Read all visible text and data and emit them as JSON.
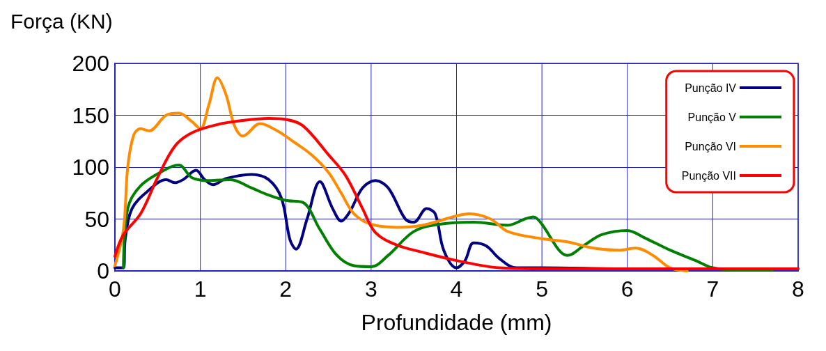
{
  "chart_data": {
    "type": "line",
    "ylabel": "Força (KN)",
    "xlabel": "Profundidade (mm)",
    "xlim": [
      0,
      8
    ],
    "xticks": [
      0,
      1,
      2,
      3,
      4,
      5,
      6,
      7,
      8
    ],
    "ylim": [
      0,
      200
    ],
    "yticks": [
      0,
      50,
      100,
      150,
      200
    ],
    "grid": true,
    "legend": "top right",
    "series": [
      {
        "name": "Punção IV",
        "color": "#000080",
        "x": [
          0,
          0.1,
          0.12,
          0.2,
          0.4,
          0.6,
          0.7,
          0.8,
          0.95,
          1.05,
          1.15,
          1.3,
          1.6,
          1.8,
          1.95,
          2.05,
          2.12,
          2.25,
          2.4,
          2.55,
          2.65,
          2.75,
          2.9,
          3.05,
          3.2,
          3.4,
          3.5,
          3.65,
          3.75,
          3.85,
          4.0,
          4.1,
          4.2,
          4.35,
          4.5,
          4.7,
          5,
          6,
          7,
          8
        ],
        "values": [
          3,
          3,
          30,
          60,
          78,
          88,
          85,
          88,
          97,
          88,
          83,
          89,
          93,
          88,
          70,
          30,
          21,
          50,
          86,
          60,
          48,
          57,
          80,
          87,
          80,
          50,
          47,
          60,
          55,
          20,
          3,
          10,
          27,
          24,
          12,
          3,
          3,
          2,
          2,
          2
        ]
      },
      {
        "name": "Punção V",
        "color": "#008000",
        "x": [
          0.1,
          0.15,
          0.3,
          0.6,
          0.75,
          0.9,
          1.1,
          1.35,
          1.6,
          1.8,
          2.0,
          2.2,
          2.4,
          2.6,
          2.8,
          3.0,
          3.2,
          3.5,
          3.8,
          4.2,
          4.6,
          4.8,
          4.9,
          5.0,
          5.2,
          5.3,
          5.5,
          5.7,
          6.0,
          6.2,
          6.5,
          6.8,
          7.0,
          7.3,
          7.7
        ],
        "values": [
          3,
          60,
          82,
          98,
          102,
          90,
          87,
          88,
          80,
          73,
          68,
          66,
          40,
          15,
          5,
          4,
          15,
          38,
          45,
          47,
          44,
          50,
          52,
          45,
          20,
          15,
          25,
          35,
          39,
          32,
          20,
          10,
          3,
          1,
          1
        ]
      },
      {
        "name": "Punção VI",
        "color": "#ff8c00",
        "x": [
          0,
          0.1,
          0.15,
          0.22,
          0.3,
          0.4,
          0.6,
          0.75,
          0.9,
          1.0,
          1.1,
          1.2,
          1.3,
          1.4,
          1.5,
          1.7,
          1.9,
          2.1,
          2.3,
          2.5,
          2.65,
          2.8,
          3.0,
          3.3,
          3.6,
          4.0,
          4.15,
          4.4,
          4.6,
          5.0,
          5.3,
          5.6,
          5.9,
          6.1,
          6.3,
          6.5,
          6.7
        ],
        "values": [
          5,
          40,
          100,
          131,
          137,
          135,
          150,
          152,
          144,
          137,
          160,
          186,
          170,
          140,
          130,
          142,
          135,
          124,
          112,
          95,
          75,
          55,
          45,
          42,
          44,
          53,
          55,
          50,
          38,
          31,
          28,
          22,
          20,
          22,
          15,
          3,
          0
        ]
      },
      {
        "name": "Punção VII",
        "color": "#ff0000",
        "x": [
          0,
          0.1,
          0.3,
          0.5,
          0.7,
          0.9,
          1.2,
          1.5,
          1.8,
          2.0,
          2.2,
          2.5,
          2.7,
          2.9,
          3.05,
          3.3,
          3.6,
          4.0,
          4.5,
          5,
          8
        ],
        "values": [
          14,
          35,
          55,
          90,
          120,
          133,
          141,
          145,
          147,
          146,
          140,
          112,
          92,
          60,
          37,
          25,
          18,
          10,
          3,
          2,
          2
        ]
      }
    ]
  }
}
